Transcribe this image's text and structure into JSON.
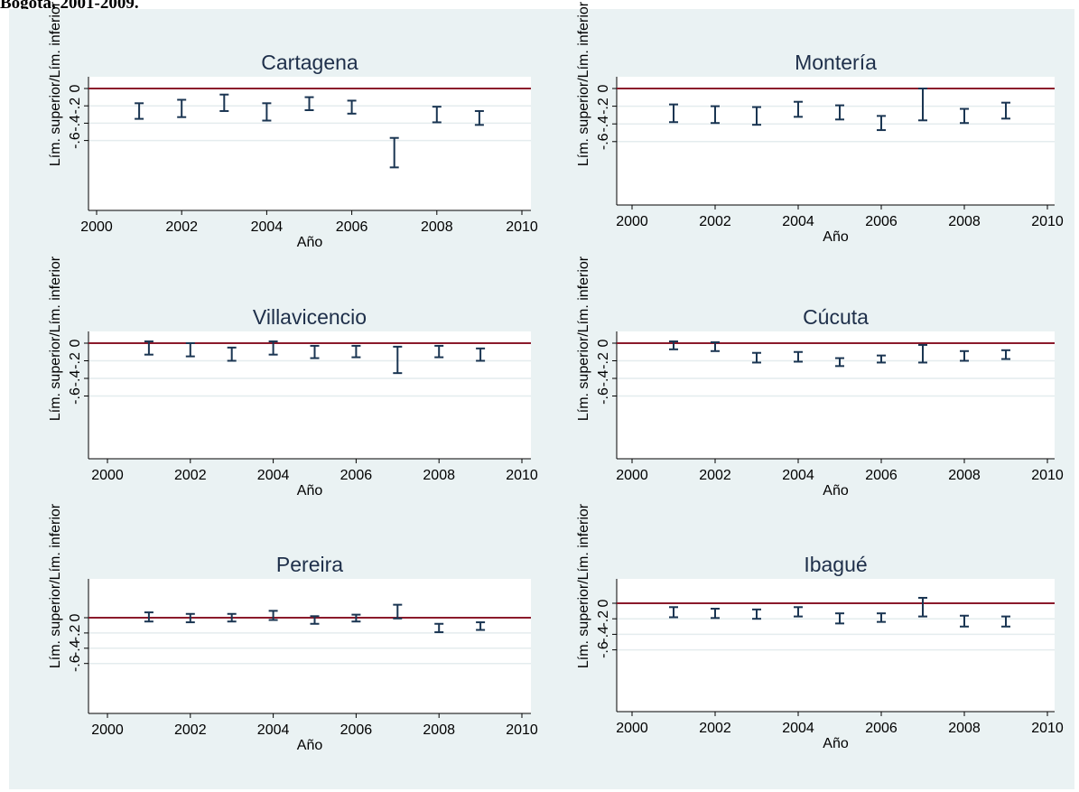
{
  "caption": "Bogotá, 2001-2009.",
  "chart_data": [
    {
      "type": "errorbar",
      "title": "Cartagena",
      "xlabel": "Año",
      "ylabel": "Lím. superior/Lím. inferior",
      "xlim": [
        2000,
        2010
      ],
      "ylim": [
        -0.8,
        0.05
      ],
      "xticks": [
        "2000",
        "2002",
        "2004",
        "2006",
        "2008",
        "2010"
      ],
      "yticks": [
        "0",
        "-.2",
        "-.4",
        "-.6"
      ],
      "yticks_values": [
        0,
        -0.2,
        -0.4,
        -0.6
      ],
      "reference_line": 0,
      "x": [
        2001,
        2002,
        2003,
        2004,
        2005,
        2006,
        2007,
        2008,
        2009
      ],
      "upper": [
        -0.17,
        -0.13,
        -0.07,
        -0.17,
        -0.1,
        -0.14,
        -0.57,
        -0.21,
        -0.26
      ],
      "lower": [
        -0.35,
        -0.33,
        -0.26,
        -0.37,
        -0.25,
        -0.29,
        -0.91,
        -0.39,
        -0.42
      ]
    },
    {
      "type": "errorbar",
      "title": "Montería",
      "xlabel": "Año",
      "ylabel": "Lím. superior/Lím. inferior",
      "xlim": [
        2000,
        2010
      ],
      "ylim": [
        -0.65,
        0.05
      ],
      "xticks": [
        "2000",
        "2002",
        "2004",
        "2006",
        "2008",
        "2010"
      ],
      "yticks": [
        "0",
        "-.2",
        "-.4",
        "-.6"
      ],
      "yticks_values": [
        0,
        -0.2,
        -0.4,
        -0.6
      ],
      "reference_line": 0,
      "x": [
        2001,
        2002,
        2003,
        2004,
        2005,
        2006,
        2007,
        2008,
        2009
      ],
      "upper": [
        -0.18,
        -0.2,
        -0.21,
        -0.15,
        -0.19,
        -0.31,
        0.0,
        -0.23,
        -0.16
      ],
      "lower": [
        -0.38,
        -0.39,
        -0.41,
        -0.32,
        -0.35,
        -0.47,
        -0.36,
        -0.39,
        -0.34
      ]
    },
    {
      "type": "errorbar",
      "title": "Villavicencio",
      "xlabel": "Año",
      "ylabel": "Lím. superior/Lím. inferior",
      "xlim": [
        2000,
        2010
      ],
      "ylim": [
        -0.65,
        0.05
      ],
      "xticks": [
        "2000",
        "2002",
        "2004",
        "2006",
        "2008",
        "2010"
      ],
      "yticks": [
        "0",
        "-.2",
        "-.4",
        "-.6"
      ],
      "yticks_values": [
        0,
        -0.2,
        -0.4,
        -0.6
      ],
      "reference_line": 0,
      "x": [
        2001,
        2002,
        2003,
        2004,
        2005,
        2006,
        2007,
        2008,
        2009
      ],
      "upper": [
        0.02,
        0.0,
        -0.05,
        0.02,
        -0.03,
        -0.03,
        -0.04,
        -0.03,
        -0.06
      ],
      "lower": [
        -0.13,
        -0.15,
        -0.2,
        -0.13,
        -0.17,
        -0.16,
        -0.34,
        -0.16,
        -0.2
      ]
    },
    {
      "type": "errorbar",
      "title": "Cúcuta",
      "xlabel": "Año",
      "ylabel": "Lím. superior/Lím. inferior",
      "xlim": [
        2000,
        2010
      ],
      "ylim": [
        -0.65,
        0.05
      ],
      "xticks": [
        "2000",
        "2002",
        "2004",
        "2006",
        "2008",
        "2010"
      ],
      "yticks": [
        "0",
        "-.2",
        "-.4",
        "-.6"
      ],
      "yticks_values": [
        0,
        -0.2,
        -0.4,
        -0.6
      ],
      "reference_line": 0,
      "x": [
        2001,
        2002,
        2003,
        2004,
        2005,
        2006,
        2007,
        2008,
        2009
      ],
      "upper": [
        0.02,
        0.01,
        -0.11,
        -0.1,
        -0.17,
        -0.14,
        -0.02,
        -0.09,
        -0.08
      ],
      "lower": [
        -0.07,
        -0.09,
        -0.22,
        -0.21,
        -0.26,
        -0.22,
        -0.22,
        -0.2,
        -0.18
      ]
    },
    {
      "type": "errorbar",
      "title": "Pereira",
      "xlabel": "Año",
      "ylabel": "Lím. superior/Lím. inferior",
      "xlim": [
        2000,
        2010
      ],
      "ylim": [
        -0.65,
        0.25
      ],
      "xticks": [
        "2000",
        "2002",
        "2004",
        "2006",
        "2008",
        "2010"
      ],
      "yticks": [
        "0",
        "-.2",
        "-.4",
        "-.6"
      ],
      "yticks_values": [
        0,
        -0.2,
        -0.4,
        -0.6
      ],
      "reference_line": 0,
      "x": [
        2001,
        2002,
        2003,
        2004,
        2005,
        2006,
        2007,
        2008,
        2009
      ],
      "upper": [
        0.07,
        0.05,
        0.05,
        0.09,
        0.02,
        0.04,
        0.17,
        -0.08,
        -0.06
      ],
      "lower": [
        -0.05,
        -0.06,
        -0.05,
        -0.03,
        -0.08,
        -0.05,
        -0.01,
        -0.19,
        -0.16
      ]
    },
    {
      "type": "errorbar",
      "title": "Ibagué",
      "xlabel": "Año",
      "ylabel": "Lím. superior/Lím. inferior",
      "xlim": [
        2000,
        2010
      ],
      "ylim": [
        -0.7,
        0.12
      ],
      "xticks": [
        "2000",
        "2002",
        "2004",
        "2006",
        "2008",
        "2010"
      ],
      "yticks": [
        "0",
        "-.2",
        "-.4",
        "-.6"
      ],
      "yticks_values": [
        0,
        -0.2,
        -0.4,
        -0.6
      ],
      "reference_line": 0,
      "x": [
        2001,
        2002,
        2003,
        2004,
        2005,
        2006,
        2007,
        2008,
        2009
      ],
      "upper": [
        -0.05,
        -0.07,
        -0.08,
        -0.05,
        -0.13,
        -0.13,
        0.07,
        -0.16,
        -0.17
      ],
      "lower": [
        -0.18,
        -0.19,
        -0.2,
        -0.17,
        -0.26,
        -0.24,
        -0.17,
        -0.3,
        -0.3
      ]
    }
  ],
  "colors": {
    "background": "#eaf2f3",
    "plot_area": "#ffffff",
    "grid": "#e4ecee",
    "reference_line": "#8b1a2b",
    "bars": "#1a3552",
    "title": "#1e2f4a"
  }
}
